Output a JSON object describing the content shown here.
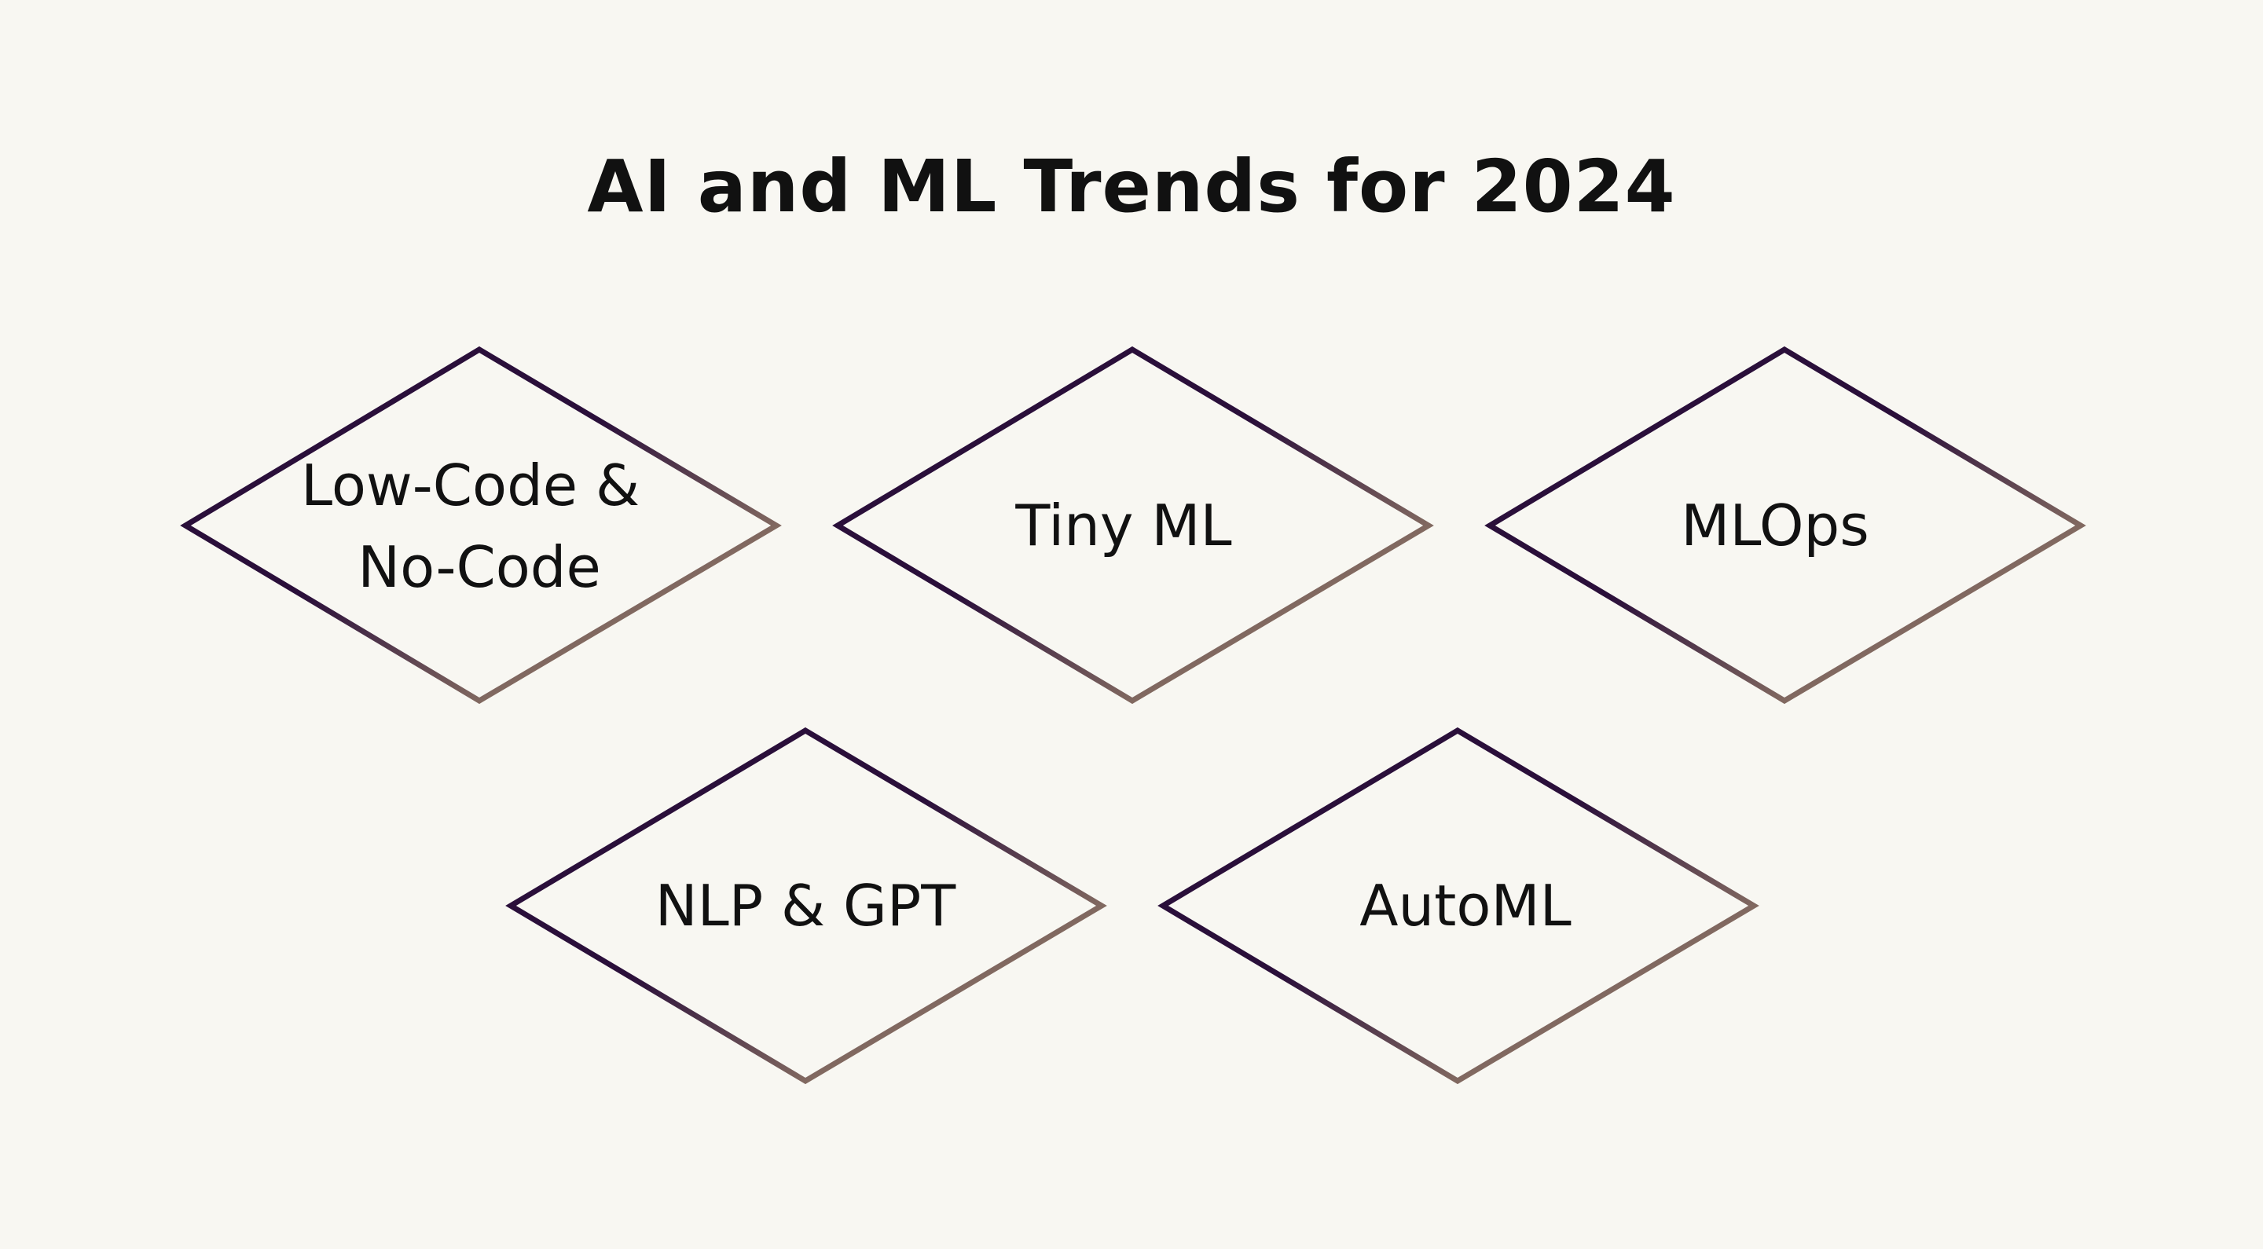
{
  "title": "AI and ML Trends for 2024",
  "colors": {
    "background": "#f8f7f2",
    "stroke_start": "#2a0f3a",
    "stroke_end": "#c9b380",
    "text": "#111111"
  },
  "trends": [
    {
      "label_lines": [
        "Low-Code &",
        "No-Code"
      ]
    },
    {
      "label_lines": [
        "Tiny ML"
      ]
    },
    {
      "label_lines": [
        "MLOps"
      ]
    },
    {
      "label_lines": [
        "NLP & GPT"
      ]
    },
    {
      "label_lines": [
        "AutoML"
      ]
    }
  ]
}
